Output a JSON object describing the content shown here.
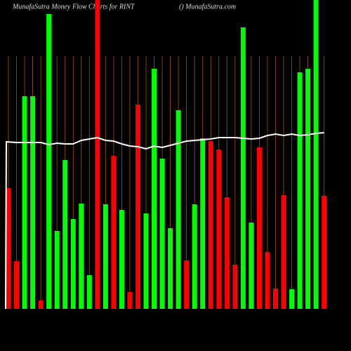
{
  "chart_data": {
    "type": "bar",
    "title": "MunafaSutra Money Flow Charts for RINT",
    "subtitle": "() MunafaSutra.com",
    "ylim": [
      0,
      440
    ],
    "series": [
      {
        "name": "Money flow",
        "values": [
          172,
          68,
          303,
          303,
          12,
          420,
          111,
          212,
          128,
          150,
          48,
          440,
          149,
          218,
          141,
          24,
          291,
          136,
          342,
          214,
          115,
          283,
          69,
          149,
          243,
          239,
          227,
          159,
          63,
          401,
          123,
          230,
          81,
          29,
          162,
          28,
          337,
          342,
          440,
          161
        ],
        "colors": [
          "#ff0000",
          "#ff0000",
          "#00ff00",
          "#00ff00",
          "#ff0000",
          "#00ff00",
          "#00ff00",
          "#00ff00",
          "#00ff00",
          "#00ff00",
          "#00ff00",
          "#ff0000",
          "#00ff00",
          "#ff0000",
          "#00ff00",
          "#ff0000",
          "#ff0000",
          "#00ff00",
          "#00ff00",
          "#00ff00",
          "#00ff00",
          "#00ff00",
          "#ff0000",
          "#00ff00",
          "#00ff00",
          "#ff0000",
          "#ff0000",
          "#ff0000",
          "#ff0000",
          "#00ff00",
          "#00ff00",
          "#ff0000",
          "#ff0000",
          "#ff0000",
          "#ff0000",
          "#00ff00",
          "#00ff00",
          "#00ff00",
          "#00ff00",
          "#ff0000"
        ]
      },
      {
        "name": "Trend",
        "color": "#ffffff",
        "values": [
          238,
          237,
          237,
          237,
          237,
          234,
          236,
          235,
          235,
          240,
          242,
          244,
          240,
          239,
          235,
          232,
          231,
          228,
          232,
          230,
          233,
          236,
          239,
          240,
          241,
          242,
          244,
          244,
          244,
          243,
          242,
          243,
          247,
          249,
          247,
          249,
          247,
          248,
          250,
          251
        ]
      }
    ]
  }
}
